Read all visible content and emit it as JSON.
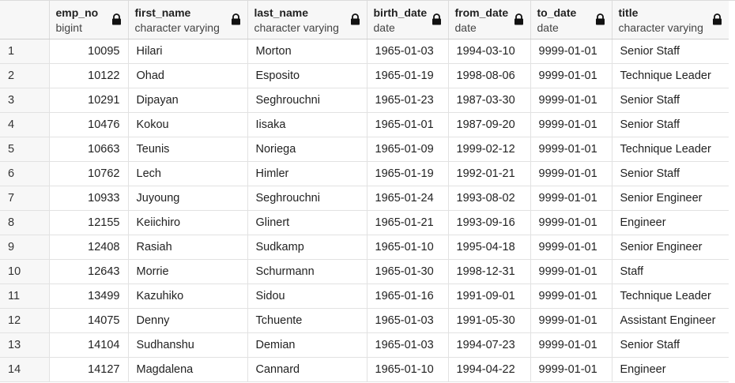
{
  "columns": [
    {
      "name": "emp_no",
      "type": "bigint"
    },
    {
      "name": "first_name",
      "type": "character varying"
    },
    {
      "name": "last_name",
      "type": "character varying"
    },
    {
      "name": "birth_date",
      "type": "date"
    },
    {
      "name": "from_date",
      "type": "date"
    },
    {
      "name": "to_date",
      "type": "date"
    },
    {
      "name": "title",
      "type": "character varying"
    }
  ],
  "rows": [
    {
      "n": "1",
      "emp_no": "10095",
      "first_name": "Hilari",
      "last_name": "Morton",
      "birth_date": "1965-01-03",
      "from_date": "1994-03-10",
      "to_date": "9999-01-01",
      "title": "Senior Staff"
    },
    {
      "n": "2",
      "emp_no": "10122",
      "first_name": "Ohad",
      "last_name": "Esposito",
      "birth_date": "1965-01-19",
      "from_date": "1998-08-06",
      "to_date": "9999-01-01",
      "title": "Technique Leader"
    },
    {
      "n": "3",
      "emp_no": "10291",
      "first_name": "Dipayan",
      "last_name": "Seghrouchni",
      "birth_date": "1965-01-23",
      "from_date": "1987-03-30",
      "to_date": "9999-01-01",
      "title": "Senior Staff"
    },
    {
      "n": "4",
      "emp_no": "10476",
      "first_name": "Kokou",
      "last_name": "Iisaka",
      "birth_date": "1965-01-01",
      "from_date": "1987-09-20",
      "to_date": "9999-01-01",
      "title": "Senior Staff"
    },
    {
      "n": "5",
      "emp_no": "10663",
      "first_name": "Teunis",
      "last_name": "Noriega",
      "birth_date": "1965-01-09",
      "from_date": "1999-02-12",
      "to_date": "9999-01-01",
      "title": "Technique Leader"
    },
    {
      "n": "6",
      "emp_no": "10762",
      "first_name": "Lech",
      "last_name": "Himler",
      "birth_date": "1965-01-19",
      "from_date": "1992-01-21",
      "to_date": "9999-01-01",
      "title": "Senior Staff"
    },
    {
      "n": "7",
      "emp_no": "10933",
      "first_name": "Juyoung",
      "last_name": "Seghrouchni",
      "birth_date": "1965-01-24",
      "from_date": "1993-08-02",
      "to_date": "9999-01-01",
      "title": "Senior Engineer"
    },
    {
      "n": "8",
      "emp_no": "12155",
      "first_name": "Keiichiro",
      "last_name": "Glinert",
      "birth_date": "1965-01-21",
      "from_date": "1993-09-16",
      "to_date": "9999-01-01",
      "title": "Engineer"
    },
    {
      "n": "9",
      "emp_no": "12408",
      "first_name": "Rasiah",
      "last_name": "Sudkamp",
      "birth_date": "1965-01-10",
      "from_date": "1995-04-18",
      "to_date": "9999-01-01",
      "title": "Senior Engineer"
    },
    {
      "n": "10",
      "emp_no": "12643",
      "first_name": "Morrie",
      "last_name": "Schurmann",
      "birth_date": "1965-01-30",
      "from_date": "1998-12-31",
      "to_date": "9999-01-01",
      "title": "Staff"
    },
    {
      "n": "11",
      "emp_no": "13499",
      "first_name": "Kazuhiko",
      "last_name": "Sidou",
      "birth_date": "1965-01-16",
      "from_date": "1991-09-01",
      "to_date": "9999-01-01",
      "title": "Technique Leader"
    },
    {
      "n": "12",
      "emp_no": "14075",
      "first_name": "Denny",
      "last_name": "Tchuente",
      "birth_date": "1965-01-03",
      "from_date": "1991-05-30",
      "to_date": "9999-01-01",
      "title": "Assistant Engineer"
    },
    {
      "n": "13",
      "emp_no": "14104",
      "first_name": "Sudhanshu",
      "last_name": "Demian",
      "birth_date": "1965-01-03",
      "from_date": "1994-07-23",
      "to_date": "9999-01-01",
      "title": "Senior Staff"
    },
    {
      "n": "14",
      "emp_no": "14127",
      "first_name": "Magdalena",
      "last_name": "Cannard",
      "birth_date": "1965-01-10",
      "from_date": "1994-04-22",
      "to_date": "9999-01-01",
      "title": "Engineer"
    }
  ],
  "icons": {
    "column_lock": "lock-icon"
  }
}
